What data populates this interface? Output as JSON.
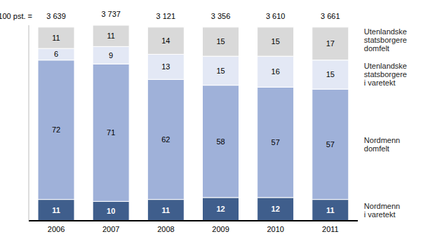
{
  "chart_data": {
    "type": "bar",
    "stacked": true,
    "data_labels": true,
    "tick_labels": "x",
    "categories": [
      "2006",
      "2007",
      "2008",
      "2009",
      "2010",
      "2011"
    ],
    "ylim": [
      0,
      101
    ],
    "total_prefix": "100 pst. =",
    "totals": [
      3639,
      3737,
      3121,
      3356,
      3610,
      3661
    ],
    "total_labels": [
      "3 639",
      "3 737",
      "3 121",
      "3 356",
      "3 610",
      "3 661"
    ],
    "series": [
      {
        "name": "Nordmenn i varetekt",
        "color": "#3f5e8c",
        "values": [
          11,
          10,
          11,
          12,
          12,
          11
        ]
      },
      {
        "name": "Nordmenn domfelt",
        "color": "#9fb1d9",
        "values": [
          72,
          71,
          62,
          58,
          57,
          57
        ]
      },
      {
        "name": "Utenlandske statsborgere i varetekt",
        "color": "#e3e8f5",
        "values": [
          6,
          9,
          13,
          15,
          16,
          15
        ]
      },
      {
        "name": "Utenlandske statsborgere domfelt",
        "color": "#d9d9d9",
        "values": [
          11,
          11,
          14,
          15,
          15,
          17
        ]
      }
    ]
  }
}
